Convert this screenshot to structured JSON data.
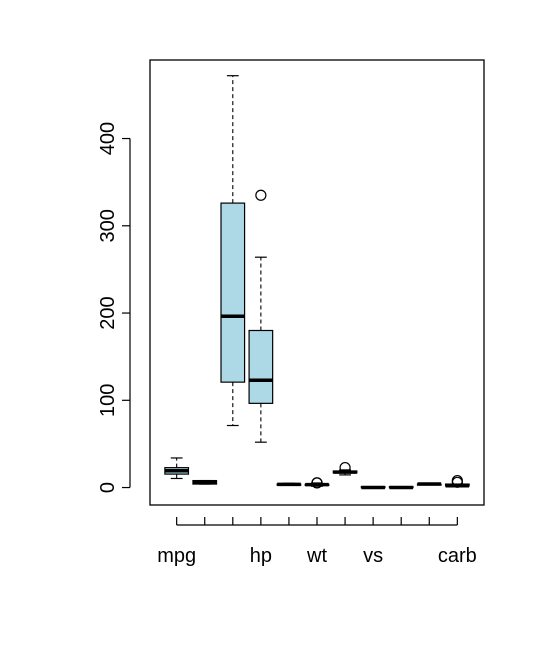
{
  "chart_data": {
    "type": "boxplot",
    "title": "",
    "xlabel": "",
    "ylabel": "",
    "ylim": [
      -20,
      490
    ],
    "y_ticks": [
      0,
      100,
      200,
      300,
      400
    ],
    "y_tick_labels": [
      "0",
      "100",
      "200",
      "300",
      "400"
    ],
    "categories": [
      "mpg",
      "",
      "hp",
      "",
      "wt",
      "",
      "vs",
      "",
      "",
      "carb",
      ""
    ],
    "x_tick_labels_visible": [
      {
        "index": 0,
        "label": "mpg"
      },
      {
        "index": 3,
        "label": "hp"
      },
      {
        "index": 5,
        "label": "wt"
      },
      {
        "index": 7,
        "label": "vs"
      },
      {
        "index": 10,
        "label": "carb"
      }
    ],
    "box_fill_color": "#add8e6",
    "grid": false,
    "series": [
      {
        "stats": {
          "min": 10.4,
          "q1": 15.4,
          "median": 19.2,
          "q3": 22.8,
          "max": 33.9
        },
        "outliers": []
      },
      {
        "stats": {
          "min": 4,
          "q1": 4,
          "median": 6,
          "q3": 8,
          "max": 8
        },
        "outliers": []
      },
      {
        "stats": {
          "min": 71.1,
          "q1": 120.8,
          "median": 196.3,
          "q3": 326,
          "max": 472
        },
        "outliers": []
      },
      {
        "stats": {
          "min": 52,
          "q1": 96.5,
          "median": 123,
          "q3": 180,
          "max": 264
        },
        "outliers": [
          335
        ]
      },
      {
        "stats": {
          "min": 2.76,
          "q1": 3.08,
          "median": 3.7,
          "q3": 3.92,
          "max": 4.93
        },
        "outliers": []
      },
      {
        "stats": {
          "min": 1.51,
          "q1": 2.58,
          "median": 3.33,
          "q3": 3.61,
          "max": 5.25
        },
        "outliers": [
          5.42,
          5.35
        ]
      },
      {
        "stats": {
          "min": 14.5,
          "q1": 16.89,
          "median": 17.71,
          "q3": 18.9,
          "max": 20.22
        },
        "outliers": [
          22.9
        ]
      },
      {
        "stats": {
          "min": 0,
          "q1": 0,
          "median": 0,
          "q3": 1,
          "max": 1
        },
        "outliers": []
      },
      {
        "stats": {
          "min": 0,
          "q1": 0,
          "median": 0,
          "q3": 1,
          "max": 1
        },
        "outliers": []
      },
      {
        "stats": {
          "min": 3,
          "q1": 3,
          "median": 4,
          "q3": 4,
          "max": 5
        },
        "outliers": []
      },
      {
        "stats": {
          "min": 1,
          "q1": 2,
          "median": 2,
          "q3": 4,
          "max": 4
        },
        "outliers": [
          6,
          8
        ]
      }
    ]
  }
}
